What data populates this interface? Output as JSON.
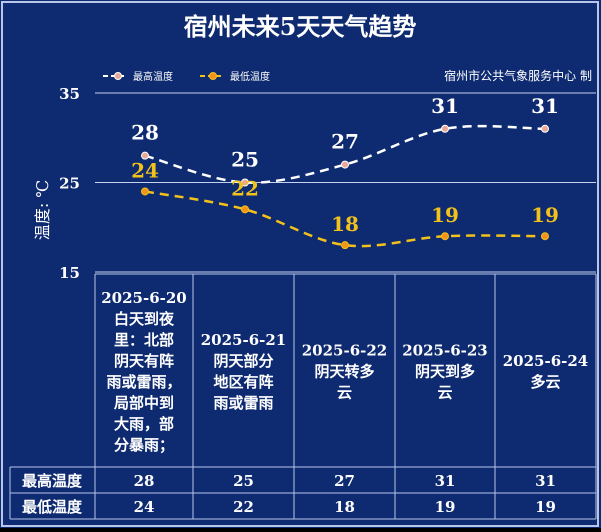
{
  "title": "宿州未来5天天气趋势",
  "credit": "宿州市公共气象服务中心 制",
  "colors": {
    "background": "#0e2a70",
    "border": "#b8c6ea",
    "high_line": "#ffffff",
    "low_line": "#f2c21a",
    "marker_fill": "#e8a898",
    "marker_low_fill": "#f2931a",
    "text": "#ffffff"
  },
  "chart_data": {
    "type": "line",
    "title": "宿州未来5天天气趋势",
    "ylabel": "温度: ℃",
    "ylim": [
      15,
      35
    ],
    "yticks": [
      15,
      25,
      35
    ],
    "grid": true,
    "legend_position": "top-left",
    "categories": [
      "2025-6-20 白天到夜里：北部阴天有阵雨或雷雨，局部中到大雨，部分暴雨；",
      "2025-6-21 阴天部分地区有阵雨或雷雨",
      "2025-6-22 阴天转多云",
      "2025-6-23 阴天到多云",
      "2025-6-24 多云"
    ],
    "series": [
      {
        "name": "最高温度",
        "values": [
          28,
          25,
          27,
          31,
          31
        ]
      },
      {
        "name": "最低温度",
        "values": [
          24,
          22,
          18,
          19,
          19
        ]
      }
    ]
  },
  "table": {
    "days": [
      {
        "date": "2025-6-20",
        "lines": [
          "2025-6-20",
          "白天到夜",
          "里：北部",
          "阴天有阵",
          "雨或雷雨，",
          "局部中到",
          "大雨，部",
          "分暴雨；"
        ]
      },
      {
        "date": "2025-6-21",
        "lines": [
          "2025-6-21",
          "阴天部分",
          "地区有阵",
          "雨或雷雨"
        ]
      },
      {
        "date": "2025-6-22",
        "lines": [
          "2025-6-22",
          "阴天转多",
          "云"
        ]
      },
      {
        "date": "2025-6-23",
        "lines": [
          "2025-6-23",
          "阴天到多",
          "云"
        ]
      },
      {
        "date": "2025-6-24",
        "lines": [
          "2025-6-24",
          "多云"
        ]
      }
    ],
    "rows": [
      {
        "label": "最高温度",
        "values": [
          "28",
          "25",
          "27",
          "31",
          "31"
        ]
      },
      {
        "label": "最低温度",
        "values": [
          "24",
          "22",
          "18",
          "19",
          "19"
        ]
      }
    ]
  }
}
